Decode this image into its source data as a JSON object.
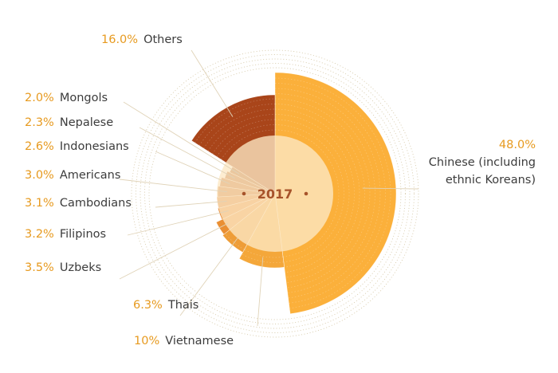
{
  "chart_data": {
    "type": "pie",
    "center_label": "2017",
    "start_angle_deg": 0,
    "direction": "clockwise",
    "slices": [
      {
        "name_lines": [
          "Chinese (including",
          "ethnic Koreans)"
        ],
        "pct_label": "48.0%",
        "value": 48.0,
        "color": "#fbb03b"
      },
      {
        "name_lines": [
          "Vietnamese"
        ],
        "pct_label": "10%",
        "value": 10.0,
        "color": "#f4a73a"
      },
      {
        "name_lines": [
          "Thais"
        ],
        "pct_label": "6.3%",
        "value": 6.3,
        "color": "#ee9d38"
      },
      {
        "name_lines": [
          "Uzbeks"
        ],
        "pct_label": "3.5%",
        "value": 3.5,
        "color": "#ea8f33"
      },
      {
        "name_lines": [
          "Filipinos"
        ],
        "pct_label": "3.2%",
        "value": 3.2,
        "color": "#e6852f"
      },
      {
        "name_lines": [
          "Cambodians"
        ],
        "pct_label": "3.1%",
        "value": 3.1,
        "color": "#d9772c"
      },
      {
        "name_lines": [
          "Americans"
        ],
        "pct_label": "3.0%",
        "value": 3.0,
        "color": "#c96a27"
      },
      {
        "name_lines": [
          "Indonesians"
        ],
        "pct_label": "2.6%",
        "value": 2.6,
        "color": "#bf6123"
      },
      {
        "name_lines": [
          "Nepalese"
        ],
        "pct_label": "2.3%",
        "value": 2.3,
        "color": "#b45a20"
      },
      {
        "name_lines": [
          "Mongols"
        ],
        "pct_label": "2.0%",
        "value": 2.0,
        "color": "#a8521d"
      },
      {
        "name_lines": [
          "Others"
        ],
        "pct_label": "16.0%",
        "value": 16.0,
        "color": "#a9451a"
      }
    ]
  }
}
